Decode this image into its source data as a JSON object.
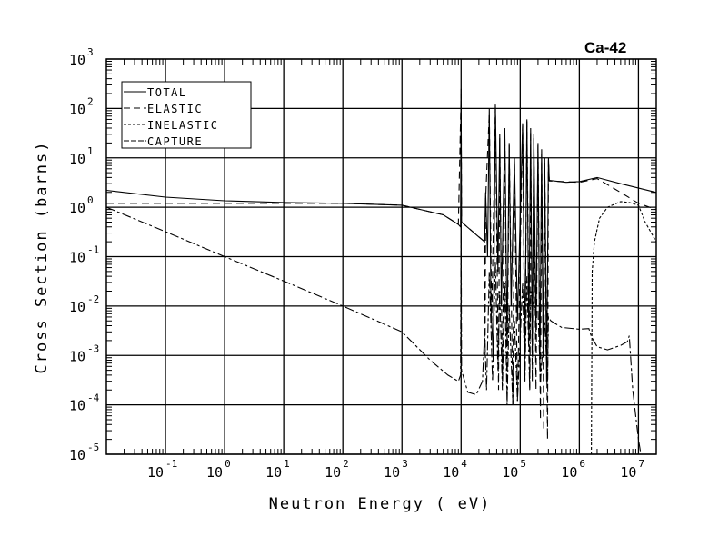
{
  "chart_data": {
    "type": "line",
    "title": "Ca-42",
    "xlabel": "Neutron Energy ( eV)",
    "ylabel": "Cross Section (barns)",
    "xscale": "log",
    "yscale": "log",
    "xlim": [
      0.01,
      20000000.0
    ],
    "ylim": [
      1e-05,
      1000
    ],
    "grid": true,
    "legend_position": "top-left",
    "xticks": [
      {
        "base": "10",
        "exp": "-1",
        "v": 0.1
      },
      {
        "base": "10",
        "exp": "0",
        "v": 1
      },
      {
        "base": "10",
        "exp": "1",
        "v": 10
      },
      {
        "base": "10",
        "exp": "2",
        "v": 100
      },
      {
        "base": "10",
        "exp": "3",
        "v": 1000
      },
      {
        "base": "10",
        "exp": "4",
        "v": 10000.0
      },
      {
        "base": "10",
        "exp": "5",
        "v": 100000.0
      },
      {
        "base": "10",
        "exp": "6",
        "v": 1000000.0
      },
      {
        "base": "10",
        "exp": "7",
        "v": 10000000.0
      }
    ],
    "yticks": [
      {
        "base": "10",
        "exp": "3",
        "v": 1000
      },
      {
        "base": "10",
        "exp": "2",
        "v": 100
      },
      {
        "base": "10",
        "exp": "1",
        "v": 10
      },
      {
        "base": "10",
        "exp": "0",
        "v": 1
      },
      {
        "base": "10",
        "exp": "-1",
        "v": 0.1
      },
      {
        "base": "10",
        "exp": "-2",
        "v": 0.01
      },
      {
        "base": "10",
        "exp": "-3",
        "v": 0.001
      },
      {
        "base": "10",
        "exp": "-4",
        "v": 0.0001
      },
      {
        "base": "10",
        "exp": "-5",
        "v": 1e-05
      }
    ],
    "series": [
      {
        "name": "TOTAL",
        "dash": "",
        "points": [
          [
            0.01,
            2.2
          ],
          [
            0.1,
            1.6
          ],
          [
            1,
            1.35
          ],
          [
            10,
            1.25
          ],
          [
            100,
            1.2
          ],
          [
            1000,
            1.1
          ],
          [
            5000,
            0.7
          ],
          [
            9000,
            0.45
          ],
          [
            9800,
            0.4
          ],
          [
            10000.0,
            250
          ],
          [
            10200.0,
            0.5
          ],
          [
            20000.0,
            0.25
          ],
          [
            25000.0,
            0.2
          ],
          [
            26000.0,
            2
          ],
          [
            28000.0,
            0.1
          ],
          [
            30000.0,
            100
          ],
          [
            32000.0,
            0.01
          ],
          [
            35000.0,
            0.001
          ],
          [
            38000.0,
            120
          ],
          [
            42000.0,
            0.05
          ],
          [
            45000.0,
            30
          ],
          [
            48000.0,
            0.01
          ],
          [
            55000.0,
            40
          ],
          [
            60000.0,
            0.002
          ],
          [
            65000.0,
            20
          ],
          [
            70000.0,
            0.01
          ],
          [
            80000.0,
            10
          ],
          [
            90000.0,
            0.005
          ],
          [
            110000.0,
            50
          ],
          [
            120000.0,
            0.001
          ],
          [
            130000.0,
            60
          ],
          [
            140000.0,
            0.002
          ],
          [
            150000.0,
            40
          ],
          [
            160000.0,
            0.001
          ],
          [
            170000.0,
            30
          ],
          [
            185000.0,
            0.003
          ],
          [
            200000.0,
            20
          ],
          [
            215000.0,
            0.0005
          ],
          [
            230000.0,
            15
          ],
          [
            245000.0,
            0.001
          ],
          [
            260000.0,
            10
          ],
          [
            280000.0,
            0.0003
          ],
          [
            300000.0,
            10
          ],
          [
            310000.0,
            3.5
          ],
          [
            600000.0,
            3.2
          ],
          [
            1000000.0,
            3.3
          ],
          [
            2000000.0,
            4
          ],
          [
            5000000.0,
            3
          ],
          [
            20000000.0,
            2
          ]
        ]
      },
      {
        "name": "ELASTIC",
        "dash": "8,5",
        "points": [
          [
            0.01,
            1.2
          ],
          [
            1,
            1.2
          ],
          [
            100,
            1.2
          ],
          [
            1000,
            1.1
          ],
          [
            5000,
            0.7
          ],
          [
            9000,
            0.45
          ],
          [
            10000.0,
            200
          ],
          [
            10200.0,
            0.5
          ],
          [
            25000.0,
            0.2
          ],
          [
            25500.0,
            0.001
          ],
          [
            26000.0,
            1.5
          ],
          [
            30000.0,
            80
          ],
          [
            33000.0,
            0.005
          ],
          [
            38000.0,
            100
          ],
          [
            43000.0,
            0.0002
          ],
          [
            45000.0,
            25
          ],
          [
            50000.0,
            0.0003
          ],
          [
            55000.0,
            35
          ],
          [
            60000.0,
            0.00015
          ],
          [
            65000.0,
            18
          ],
          [
            75000.0,
            0.0001
          ],
          [
            80000.0,
            9
          ],
          [
            90000.0,
            0.00012
          ],
          [
            110000.0,
            45
          ],
          [
            120000.0,
            0.0003
          ],
          [
            130000.0,
            55
          ],
          [
            145000.0,
            0.0002
          ],
          [
            150000.0,
            35
          ],
          [
            160000.0,
            0.0003
          ],
          [
            170000.0,
            25
          ],
          [
            185000.0,
            0.0002
          ],
          [
            200000.0,
            18
          ],
          [
            220000.0,
            5e-05
          ],
          [
            230000.0,
            12
          ],
          [
            250000.0,
            3e-05
          ],
          [
            260000.0,
            8
          ],
          [
            290000.0,
            2e-05
          ],
          [
            300000.0,
            9
          ],
          [
            310000.0,
            3.4
          ],
          [
            1000000.0,
            3.2
          ],
          [
            2000000.0,
            3.8
          ],
          [
            5000000.0,
            2
          ],
          [
            10000000.0,
            1.2
          ],
          [
            20000000.0,
            0.9
          ]
        ]
      },
      {
        "name": "INELASTIC",
        "dash": "3,2",
        "points": [
          [
            1600000.0,
            1e-05
          ],
          [
            1650000.0,
            0.05
          ],
          [
            1800000.0,
            0.2
          ],
          [
            2200000.0,
            0.6
          ],
          [
            3000000.0,
            1.0
          ],
          [
            5000000.0,
            1.3
          ],
          [
            7000000.0,
            1.25
          ],
          [
            10000000.0,
            1.1
          ],
          [
            13000000.0,
            0.5
          ],
          [
            20000000.0,
            0.2
          ]
        ]
      },
      {
        "name": "CAPTURE",
        "dash": "10,3,3,3",
        "points": [
          [
            0.01,
            1.0
          ],
          [
            0.1,
            0.32
          ],
          [
            1,
            0.1
          ],
          [
            10,
            0.032
          ],
          [
            100,
            0.01
          ],
          [
            1000,
            0.003
          ],
          [
            3000,
            0.0008
          ],
          [
            6000,
            0.0004
          ],
          [
            9000,
            0.0003
          ],
          [
            9800,
            0.0004
          ],
          [
            10000.0,
            0.5
          ],
          [
            10200.0,
            0.0005
          ],
          [
            13000.0,
            0.00018
          ],
          [
            18000.0,
            0.00016
          ],
          [
            23000.0,
            0.0003
          ],
          [
            25000.0,
            0.003
          ],
          [
            27000.0,
            0.0002
          ],
          [
            30000.0,
            0.05
          ],
          [
            34000.0,
            0.0003
          ],
          [
            38000.0,
            0.08
          ],
          [
            42000.0,
            0.0005
          ],
          [
            45000.0,
            0.02
          ],
          [
            50000.0,
            0.0002
          ],
          [
            55000.0,
            0.03
          ],
          [
            60000.0,
            0.0001
          ],
          [
            65000.0,
            0.01
          ],
          [
            75000.0,
            0.0001
          ],
          [
            80000.0,
            0.005
          ],
          [
            90000.0,
            0.00012
          ],
          [
            110000.0,
            0.03
          ],
          [
            120000.0,
            0.0003
          ],
          [
            130000.0,
            0.04
          ],
          [
            145000.0,
            0.0002
          ],
          [
            150000.0,
            0.02
          ],
          [
            170000.0,
            0.01
          ],
          [
            200000.0,
            0.008
          ],
          [
            220000.0,
            0.0003
          ],
          [
            260000.0,
            0.005
          ],
          [
            290000.0,
            0.0003
          ],
          [
            300000.0,
            0.006
          ],
          [
            330000.0,
            0.005
          ],
          [
            500000.0,
            0.0037
          ],
          [
            1000000.0,
            0.0034
          ],
          [
            1450000.0,
            0.0035
          ],
          [
            1600000.0,
            0.0024
          ],
          [
            2000000.0,
            0.0015
          ],
          [
            3000000.0,
            0.0013
          ],
          [
            5000000.0,
            0.0016
          ],
          [
            6500000.0,
            0.0019
          ],
          [
            7000000.0,
            0.0025
          ],
          [
            8000000.0,
            0.0002
          ],
          [
            10000000.0,
            2e-05
          ],
          [
            11000000.0,
            1e-05
          ]
        ]
      }
    ]
  }
}
